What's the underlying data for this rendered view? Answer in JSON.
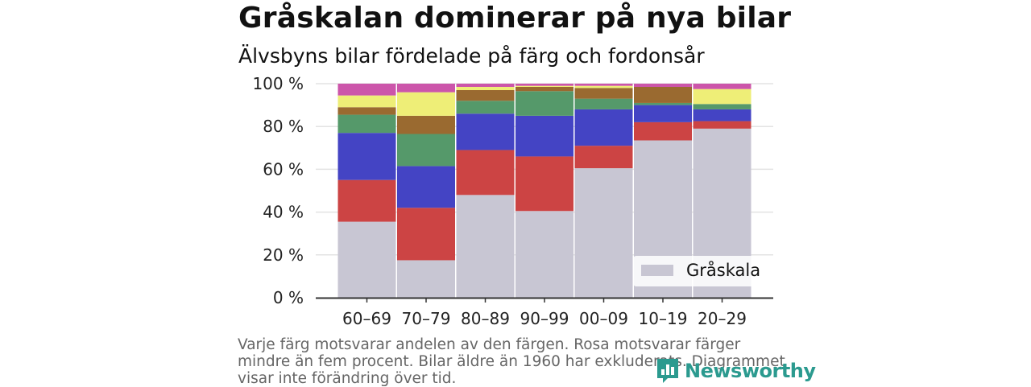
{
  "header": {
    "title": "Gråskalan dominerar på nya bilar",
    "subtitle": "Älvsbyns bilar fördelade på färg och fordonsår"
  },
  "chart_data": {
    "type": "bar",
    "stacked": true,
    "categories": [
      "60–69",
      "70–79",
      "80–89",
      "90–99",
      "00–09",
      "10–19",
      "20–29"
    ],
    "ylim": [
      0,
      100
    ],
    "yticks": [
      0,
      20,
      40,
      60,
      80,
      100
    ],
    "ytick_labels": [
      "0 %",
      "20 %",
      "40 %",
      "60 %",
      "80 %",
      "100 %"
    ],
    "series": [
      {
        "name": "Gråskala",
        "color": "#c8c6d3",
        "values": [
          35.5,
          17.5,
          48,
          40.5,
          60.5,
          73.5,
          79
        ]
      },
      {
        "color": "#cc4444",
        "values": [
          19.5,
          24.5,
          21,
          25.5,
          10.5,
          8.5,
          3.5
        ]
      },
      {
        "color": "#4444c4",
        "values": [
          22,
          19.5,
          17,
          19,
          17,
          8,
          5.5
        ]
      },
      {
        "color": "#55996a",
        "values": [
          8.5,
          15,
          6,
          11.5,
          5,
          1,
          2.5
        ]
      },
      {
        "color": "#9a6a30",
        "values": [
          3.5,
          8.5,
          5,
          2,
          5,
          7.5,
          0
        ]
      },
      {
        "color": "#eeee77",
        "values": [
          5.5,
          11,
          1.5,
          0.5,
          1,
          0,
          7
        ]
      },
      {
        "color": "#cc55aa",
        "values": [
          5.5,
          4,
          1.5,
          1,
          1,
          1.5,
          2.5
        ]
      }
    ],
    "legend": {
      "position": "bottom-right",
      "entries": [
        "Gråskala"
      ]
    },
    "grid": "horizontal"
  },
  "note": "Varje färg motsvarar andelen av den färgen. Rosa motsvarar färger mindre än fem procent. Bilar äldre än 1960 har exkluderats. Diagrammet visar inte förändring över tid.",
  "branding": {
    "logo_text": "Newsworthy",
    "logo_icon": "bar-chart-speech-bubble-icon",
    "color": "#2b9a8f"
  }
}
